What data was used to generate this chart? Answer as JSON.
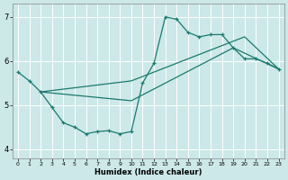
{
  "background_color": "#cce8e8",
  "grid_color": "#ffffff",
  "line_color": "#1a7a6e",
  "xlim": [
    -0.5,
    23.5
  ],
  "ylim": [
    3.8,
    7.3
  ],
  "xticks": [
    0,
    1,
    2,
    3,
    4,
    5,
    6,
    7,
    8,
    9,
    10,
    11,
    12,
    13,
    14,
    15,
    16,
    17,
    18,
    19,
    20,
    21,
    22,
    23
  ],
  "yticks": [
    4,
    5,
    6,
    7
  ],
  "xlabel": "Humidex (Indice chaleur)",
  "line1_x": [
    0,
    1,
    2,
    3,
    4,
    5,
    6,
    7,
    8,
    9,
    10,
    11,
    12,
    13,
    14,
    15,
    16,
    17,
    18,
    19,
    20,
    21,
    22,
    23
  ],
  "line1_y": [
    5.75,
    5.55,
    5.3,
    4.95,
    4.6,
    4.5,
    4.35,
    4.4,
    4.42,
    4.35,
    4.4,
    5.5,
    5.95,
    7.0,
    6.95,
    6.65,
    6.55,
    6.6,
    6.6,
    6.3,
    6.05,
    6.05,
    5.95,
    5.82
  ],
  "line2_x": [
    2,
    10,
    20,
    23
  ],
  "line2_y": [
    5.3,
    5.55,
    6.55,
    5.82
  ],
  "line3_x": [
    2,
    10,
    19,
    23
  ],
  "line3_y": [
    5.3,
    5.1,
    6.3,
    5.82
  ]
}
